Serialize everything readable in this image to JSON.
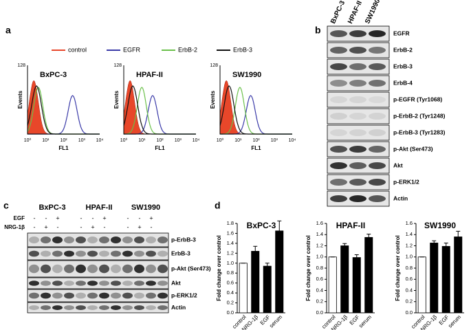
{
  "panel_labels": [
    "a",
    "b",
    "c",
    "d"
  ],
  "flow": {
    "legend": [
      {
        "name": "control",
        "color": "#e8472a"
      },
      {
        "name": "EGFR",
        "color": "#3a3aa8"
      },
      {
        "name": "ErbB-2",
        "color": "#6ac04a"
      },
      {
        "name": "ErbB-3",
        "color": "#111111"
      }
    ],
    "plots": [
      "BxPC-3",
      "HPAF-II",
      "SW1990"
    ],
    "ylabel": "Events",
    "ytick": 128,
    "xlabel": "FL1",
    "xticks": [
      "10⁰",
      "10¹",
      "10²",
      "10³",
      "10⁴"
    ]
  },
  "blot_b": {
    "columns": [
      "BxPC-3",
      "HPAF-II",
      "SW1990"
    ],
    "rows": [
      "EGFR",
      "ErbB-2",
      "ErbB-3",
      "ErbB-4",
      "p-EGFR (Tyr1068)",
      "p-ErbB-2 (Tyr1248)",
      "p-ErbB-3 (Tyr1283)",
      "p-Akt (Ser473)",
      "Akt",
      "p-ERK1/2",
      "Actin"
    ]
  },
  "blot_c": {
    "egf_label": "EGF",
    "nrg_label": "NRG-1β",
    "groups": [
      {
        "name": "BxPC-3",
        "egf": [
          "-",
          "-",
          "+"
        ],
        "nrg": [
          "-",
          "+",
          "-"
        ]
      },
      {
        "name": "HPAF-II",
        "egf": [
          "-",
          "-",
          "+"
        ],
        "nrg": [
          "-",
          "+",
          "-"
        ]
      },
      {
        "name": "SW1990",
        "egf": [
          "-",
          "-",
          "+"
        ],
        "nrg": [
          "-",
          "+",
          "-"
        ]
      }
    ],
    "rows": [
      "p-ErbB-3",
      "ErbB-3",
      "p-Akt (Ser473)",
      "Akt",
      "p-ERK1/2",
      "Actin"
    ]
  },
  "chart_data": [
    {
      "type": "bar",
      "title": "BxPC-3",
      "ylabel": "Fold change over control",
      "categories": [
        "control",
        "NRG-1β",
        "EGF",
        "serum"
      ],
      "values": [
        1.0,
        1.24,
        0.94,
        1.65
      ],
      "errors": [
        0,
        0.1,
        0.06,
        0.2
      ],
      "colors": [
        "#ffffff",
        "#000000",
        "#000000",
        "#000000"
      ],
      "ylim": [
        0,
        1.8
      ],
      "yticks": [
        {
          "value": 0,
          "label": "0.0"
        },
        0.2,
        0.4,
        0.6,
        0.8,
        {
          "value": 1,
          "label": "1.0"
        },
        1.2,
        1.4,
        1.6,
        1.8
      ]
    },
    {
      "type": "bar",
      "title": "HPAF-II",
      "ylabel": "Fold change over control",
      "categories": [
        "control",
        "NRG-1β",
        "EGF",
        "serum"
      ],
      "values": [
        1.0,
        1.2,
        0.99,
        1.35
      ],
      "errors": [
        0,
        0.04,
        0.05,
        0.06
      ],
      "colors": [
        "#ffffff",
        "#000000",
        "#000000",
        "#000000"
      ],
      "ylim": [
        0,
        1.6
      ],
      "yticks": [
        {
          "value": 0,
          "label": "0.0"
        },
        0.2,
        0.4,
        0.6,
        0.8,
        {
          "value": 1,
          "label": "1.0"
        },
        1.2,
        1.4,
        1.6
      ]
    },
    {
      "type": "bar",
      "title": "SW1990",
      "ylabel": "Fold change over control",
      "categories": [
        "control",
        "NRG-1β",
        "EGF",
        "serum"
      ],
      "values": [
        1.0,
        1.25,
        1.19,
        1.36
      ],
      "errors": [
        0,
        0.04,
        0.06,
        0.1
      ],
      "colors": [
        "#ffffff",
        "#000000",
        "#000000",
        "#000000"
      ],
      "ylim": [
        0,
        1.6
      ],
      "yticks": [
        {
          "value": 0,
          "label": "0.0"
        },
        0.2,
        0.4,
        0.6,
        0.8,
        {
          "value": 1,
          "label": "1.0"
        },
        1.2,
        1.4,
        1.6
      ]
    }
  ]
}
